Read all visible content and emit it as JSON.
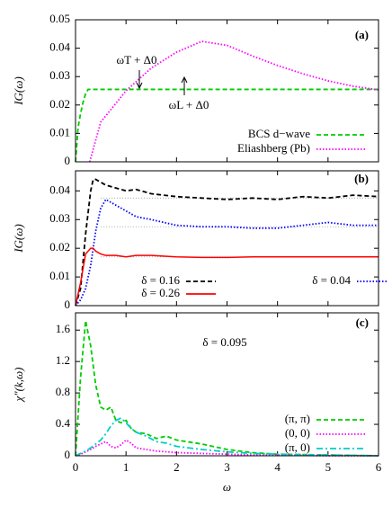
{
  "chart_data": [
    {
      "type": "line",
      "ylabel": "IG(ω)",
      "annotations": [
        "(a)",
        "ωT + Δ0",
        "ωL + Δ0"
      ],
      "xlim": [
        0,
        6
      ],
      "ylim": [
        0,
        0.05
      ],
      "yticks": [
        0,
        0.01,
        0.02,
        0.03,
        0.04,
        0.05
      ],
      "x": [
        0,
        0.05,
        0.1,
        0.15,
        0.2,
        0.25,
        0.28,
        0.5,
        1,
        1.5,
        2,
        2.5,
        3,
        3.5,
        4,
        4.5,
        5,
        5.5,
        6
      ],
      "series": [
        {
          "name": "BCS d−wave",
          "color": "#00cc00",
          "style": "dashed",
          "values": [
            0,
            0.012,
            0.017,
            0.021,
            0.024,
            0.0255,
            0.0255,
            0.0255,
            0.0255,
            0.0255,
            0.0255,
            0.0255,
            0.0255,
            0.0255,
            0.0255,
            0.0255,
            0.0255,
            0.0255,
            0.0255
          ]
        },
        {
          "name": "Eliashberg (Pb)",
          "color": "#ff00ff",
          "style": "dotted",
          "values": [
            null,
            null,
            null,
            null,
            null,
            null,
            0,
            0.014,
            0.025,
            0.033,
            0.0386,
            0.0424,
            0.041,
            0.0373,
            0.0339,
            0.031,
            0.0285,
            0.0266,
            0.0253
          ]
        }
      ]
    },
    {
      "type": "line",
      "ylabel": "IG(ω)",
      "annotations": [
        "(b)"
      ],
      "xlim": [
        0,
        6
      ],
      "ylim": [
        0,
        0.047
      ],
      "yticks": [
        0,
        0.01,
        0.02,
        0.03,
        0.04
      ],
      "reference_lines": [
        0.0375,
        0.0275,
        0.017
      ],
      "x": [
        0,
        0.1,
        0.2,
        0.3,
        0.35,
        0.4,
        0.5,
        0.6,
        0.8,
        1,
        1.2,
        1.5,
        2,
        2.5,
        3,
        3.5,
        4,
        4.5,
        5,
        5.5,
        6
      ],
      "series": [
        {
          "name": "δ = 0.16",
          "color": "#000000",
          "style": "dashed",
          "values": [
            0,
            0.006,
            0.025,
            0.04,
            0.044,
            0.044,
            0.043,
            0.042,
            0.041,
            0.04,
            0.0405,
            0.039,
            0.038,
            0.0375,
            0.037,
            0.0375,
            0.037,
            0.038,
            0.0375,
            0.0385,
            0.038
          ]
        },
        {
          "name": "δ = 0.04",
          "color": "#0000ff",
          "style": "dotted",
          "values": [
            0,
            0.002,
            0.006,
            0.014,
            0.02,
            0.026,
            0.034,
            0.037,
            0.035,
            0.033,
            0.031,
            0.03,
            0.028,
            0.0275,
            0.0275,
            0.027,
            0.027,
            0.028,
            0.029,
            0.028,
            0.028
          ]
        },
        {
          "name": "δ = 0.26",
          "color": "#ff0000",
          "style": "solid",
          "values": [
            0,
            0.008,
            0.018,
            0.02,
            0.02,
            0.019,
            0.018,
            0.0175,
            0.0175,
            0.017,
            0.0175,
            0.0175,
            0.017,
            0.0168,
            0.0168,
            0.017,
            0.017,
            0.017,
            0.017,
            0.017,
            0.017
          ]
        }
      ]
    },
    {
      "type": "line",
      "ylabel": "χ″(k,ω)",
      "xlabel": "ω",
      "annotations": [
        "(c)",
        "δ = 0.095"
      ],
      "xlim": [
        0,
        6
      ],
      "xticks": [
        0,
        1,
        2,
        3,
        4,
        5,
        6
      ],
      "ylim": [
        0,
        1.82
      ],
      "yticks": [
        0,
        0.4,
        0.8,
        1.2,
        1.6
      ],
      "x": [
        0,
        0.1,
        0.2,
        0.3,
        0.4,
        0.5,
        0.6,
        0.7,
        0.8,
        0.9,
        1,
        1.1,
        1.2,
        1.4,
        1.6,
        1.8,
        2,
        2.5,
        3,
        3.5,
        4,
        5,
        6
      ],
      "series": [
        {
          "name": "(π, π)",
          "color": "#00cc00",
          "style": "dashed",
          "values": [
            0,
            1.0,
            1.72,
            1.4,
            0.9,
            0.62,
            0.58,
            0.62,
            0.45,
            0.42,
            0.45,
            0.35,
            0.3,
            0.28,
            0.22,
            0.25,
            0.2,
            0.15,
            0.08,
            0.04,
            0.02,
            0.01,
            0
          ]
        },
        {
          "name": "(0, 0)",
          "color": "#ff00ff",
          "style": "dotted",
          "values": [
            0,
            0.02,
            0.05,
            0.08,
            0.12,
            0.15,
            0.18,
            0.12,
            0.1,
            0.14,
            0.2,
            0.16,
            0.1,
            0.08,
            0.06,
            0.05,
            0.04,
            0.03,
            0.02,
            0.01,
            0.01,
            0,
            0
          ]
        },
        {
          "name": "(π, 0)",
          "color": "#00cccc",
          "style": "dashdot",
          "values": [
            0,
            0.03,
            0.06,
            0.1,
            0.15,
            0.2,
            0.28,
            0.38,
            0.45,
            0.48,
            0.42,
            0.35,
            0.3,
            0.25,
            0.18,
            0.16,
            0.12,
            0.08,
            0.05,
            0.03,
            0.02,
            0.01,
            0
          ]
        }
      ]
    }
  ]
}
